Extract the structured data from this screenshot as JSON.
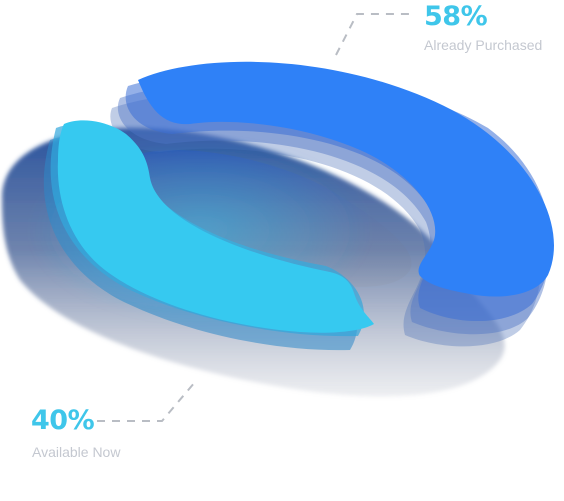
{
  "chart_data": {
    "type": "pie",
    "style": "3d-donut",
    "title": "",
    "slices": [
      {
        "key": "purchased",
        "value": 58,
        "display": "58%",
        "label": "Already Purchased",
        "color": "#2f81f7"
      },
      {
        "key": "available",
        "value": 40,
        "display": "40%",
        "label": "Available Now",
        "color": "#36c9f0"
      }
    ],
    "label_color": "#3fc6ea",
    "shadow_color": "#1e3f7a",
    "connector_color": "#b9bdc4"
  }
}
